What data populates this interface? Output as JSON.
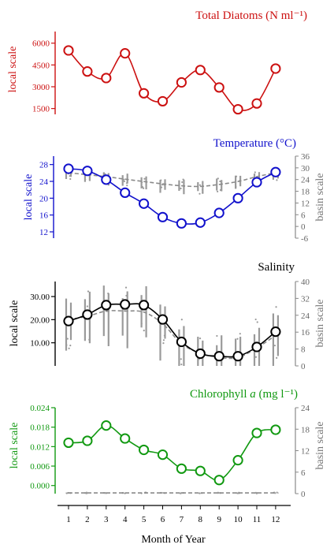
{
  "chart_data": [
    {
      "type": "line",
      "title": "Total Diatoms (N ml⁻¹)",
      "color": "#cc1111",
      "ylabel": "local scale",
      "y_ticks": [
        "1500",
        "3000",
        "4500",
        "6000"
      ],
      "ylim": [
        1100,
        6800
      ],
      "x": [
        1,
        2,
        3,
        4,
        5,
        6,
        7,
        8,
        9,
        10,
        11,
        12
      ],
      "series": [
        {
          "values": [
            5500,
            4050,
            3600,
            5300,
            2550,
            2000,
            3300,
            4150,
            2950,
            1450,
            1850,
            4250
          ]
        }
      ]
    },
    {
      "type": "line",
      "title": "Temperature (°C)",
      "color": "#1111cc",
      "ylabel": "local scale",
      "y2label": "basin scale",
      "y_ticks": [
        "12",
        "16",
        "20",
        "24",
        "28"
      ],
      "y2_ticks": [
        "-6",
        "0",
        "6",
        "12",
        "18",
        "24",
        "30",
        "36"
      ],
      "ylim": [
        10.5,
        30.0
      ],
      "y2lim": [
        -6,
        36
      ],
      "x": [
        1,
        2,
        3,
        4,
        5,
        6,
        7,
        8,
        9,
        10,
        11,
        12
      ],
      "series": [
        {
          "values": [
            27.0,
            26.5,
            24.4,
            21.3,
            18.7,
            15.5,
            14.0,
            14.2,
            16.5,
            20.0,
            23.8,
            26.2
          ]
        }
      ],
      "basin_mean": [
        27.5,
        26.5,
        25.5,
        24.2,
        23.0,
        21.8,
        20.8,
        20.5,
        21.5,
        23.0,
        25.5,
        27.5
      ]
    },
    {
      "type": "line",
      "title": "Salinity",
      "color": "#000000",
      "ylabel": "local scale",
      "y2label": "basin scale",
      "y_ticks": [
        "10.00",
        "20.00",
        "30.00"
      ],
      "y2_ticks": [
        "0",
        "8",
        "16",
        "24",
        "32",
        "40"
      ],
      "ylim": [
        0,
        36.5
      ],
      "y2lim": [
        0,
        40
      ],
      "x": [
        1,
        2,
        3,
        4,
        5,
        6,
        7,
        8,
        9,
        10,
        11,
        12
      ],
      "series": [
        {
          "values": [
            19.4,
            22.2,
            26.3,
            26.6,
            26.3,
            20.1,
            10.4,
            5.3,
            4.2,
            4.2,
            8.2,
            14.8
          ]
        }
      ],
      "basin_mean": [
        22.0,
        23.5,
        26.0,
        26.0,
        25.5,
        20.0,
        10.5,
        6.0,
        4.0,
        4.0,
        8.5,
        14.5
      ]
    },
    {
      "type": "line",
      "title": "Chlorophyll a (mg l⁻¹)",
      "title_parts": [
        "Chlorophyll ",
        "a",
        " (mg l⁻¹)"
      ],
      "color": "#119911",
      "ylabel": "local scale",
      "y2label": "basin scale",
      "xlabel": "Month of Year",
      "y_ticks": [
        "0.000",
        "0.006",
        "0.012",
        "0.018",
        "0.024"
      ],
      "y2_ticks": [
        "0",
        "6",
        "12",
        "18",
        "24"
      ],
      "ylim": [
        -0.0025,
        0.024
      ],
      "y2lim": [
        0,
        24
      ],
      "x": [
        1,
        2,
        3,
        4,
        5,
        6,
        7,
        8,
        9,
        10,
        11,
        12
      ],
      "x_ticks": [
        "1",
        "2",
        "3",
        "4",
        "5",
        "6",
        "7",
        "8",
        "9",
        "10",
        "11",
        "12"
      ],
      "series": [
        {
          "values": [
            0.0132,
            0.0138,
            0.0185,
            0.0145,
            0.011,
            0.0095,
            0.0052,
            0.0045,
            0.0017,
            0.0078,
            0.0162,
            0.0172
          ]
        }
      ],
      "basin_mean": [
        0.2,
        0.2,
        0.2,
        0.2,
        0.2,
        0.2,
        0.2,
        0.2,
        0.2,
        0.2,
        0.2,
        0.2
      ]
    }
  ]
}
